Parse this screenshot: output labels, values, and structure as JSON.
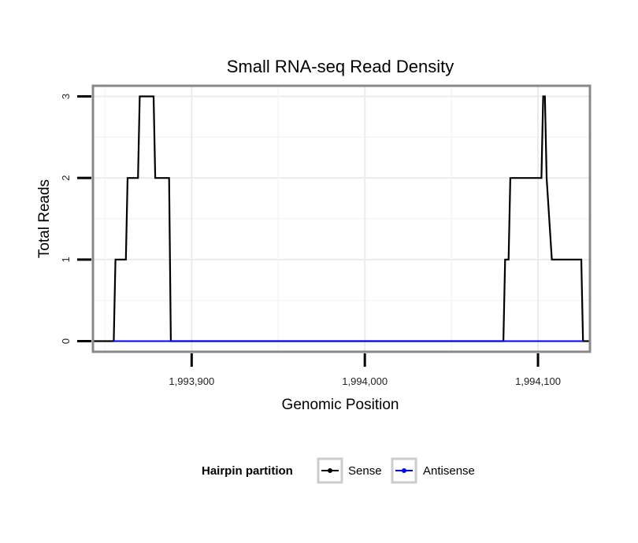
{
  "chart_data": {
    "type": "line",
    "title": "Small RNA-seq Read Density",
    "xlabel": "Genomic Position",
    "ylabel": "Total Reads",
    "xlim": [
      1993843,
      1994130
    ],
    "ylim": [
      -0.13,
      3.13
    ],
    "x_ticks": [
      1993900,
      1994000,
      1994100
    ],
    "x_tick_labels": [
      "1,993,900",
      "1,994,000",
      "1,994,100"
    ],
    "y_ticks": [
      0,
      1,
      2,
      3
    ],
    "y_tick_labels": [
      "0",
      "1",
      "2",
      "3"
    ],
    "grid": true,
    "legend": {
      "title": "Hairpin partition",
      "position": "bottom"
    },
    "series": [
      {
        "name": "Sense",
        "color": "#000000",
        "x": [
          1993843,
          1993855,
          1993856,
          1993862,
          1993863,
          1993869,
          1993870,
          1993878,
          1993879,
          1993887,
          1993888,
          1994080,
          1994081,
          1994083,
          1994084,
          1994102,
          1994103,
          1994104,
          1994105,
          1994108,
          1994109,
          1994125,
          1994126,
          1994130
        ],
        "values": [
          0,
          0,
          1,
          1,
          2,
          2,
          3,
          3,
          2,
          2,
          0,
          0,
          1,
          1,
          2,
          2,
          3,
          3,
          2,
          1,
          1,
          1,
          0,
          0
        ]
      },
      {
        "name": "Antisense",
        "color": "#0000ff",
        "x": [
          1993855,
          1993888,
          1994080,
          1994126
        ],
        "values": [
          0,
          0,
          0,
          0
        ]
      }
    ]
  }
}
